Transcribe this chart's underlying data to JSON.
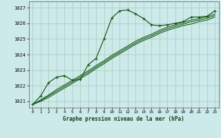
{
  "title": "Graphe pression niveau de la mer (hPa)",
  "bg_color": "#cdeaea",
  "grid_color": "#a8c8b8",
  "line_color": "#1a5c1a",
  "marker_color": "#1a5c1a",
  "xlim": [
    -0.5,
    23.5
  ],
  "ylim": [
    1020.6,
    1027.4
  ],
  "yticks": [
    1021,
    1022,
    1023,
    1024,
    1025,
    1026,
    1027
  ],
  "xticks": [
    0,
    1,
    2,
    3,
    4,
    5,
    6,
    7,
    8,
    9,
    10,
    11,
    12,
    13,
    14,
    15,
    16,
    17,
    18,
    19,
    20,
    21,
    22,
    23
  ],
  "series1_x": [
    0,
    1,
    2,
    3,
    4,
    5,
    6,
    7,
    8,
    9,
    10,
    11,
    12,
    13,
    14,
    15,
    16,
    17,
    18,
    19,
    20,
    21,
    22,
    23
  ],
  "series1_y": [
    1020.8,
    1021.35,
    1022.2,
    1022.55,
    1022.65,
    1022.35,
    1022.4,
    1023.35,
    1023.75,
    1025.0,
    1026.35,
    1026.8,
    1026.85,
    1026.6,
    1026.3,
    1025.9,
    1025.85,
    1025.9,
    1026.0,
    1026.1,
    1026.4,
    1026.4,
    1026.45,
    1026.8
  ],
  "series2_x": [
    0,
    1,
    2,
    3,
    4,
    5,
    6,
    7,
    8,
    9,
    10,
    11,
    12,
    13,
    14,
    15,
    16,
    17,
    18,
    19,
    20,
    21,
    22,
    23
  ],
  "series2_y": [
    1020.8,
    1021.0,
    1021.25,
    1021.55,
    1021.85,
    1022.15,
    1022.45,
    1022.75,
    1023.1,
    1023.4,
    1023.75,
    1024.05,
    1024.35,
    1024.65,
    1024.9,
    1025.1,
    1025.35,
    1025.55,
    1025.7,
    1025.85,
    1025.95,
    1026.1,
    1026.2,
    1026.4
  ],
  "series3_x": [
    0,
    1,
    2,
    3,
    4,
    5,
    6,
    7,
    8,
    9,
    10,
    11,
    12,
    13,
    14,
    15,
    16,
    17,
    18,
    19,
    20,
    21,
    22,
    23
  ],
  "series3_y": [
    1020.8,
    1021.05,
    1021.35,
    1021.65,
    1021.95,
    1022.25,
    1022.55,
    1022.85,
    1023.2,
    1023.5,
    1023.85,
    1024.15,
    1024.45,
    1024.75,
    1025.0,
    1025.2,
    1025.45,
    1025.65,
    1025.8,
    1025.95,
    1026.1,
    1026.2,
    1026.32,
    1026.5
  ],
  "series4_x": [
    0,
    1,
    2,
    3,
    4,
    5,
    6,
    7,
    8,
    9,
    10,
    11,
    12,
    13,
    14,
    15,
    16,
    17,
    18,
    19,
    20,
    21,
    22,
    23
  ],
  "series4_y": [
    1020.8,
    1021.1,
    1021.4,
    1021.75,
    1022.05,
    1022.35,
    1022.65,
    1022.95,
    1023.3,
    1023.6,
    1023.95,
    1024.25,
    1024.55,
    1024.85,
    1025.1,
    1025.3,
    1025.55,
    1025.75,
    1025.9,
    1026.05,
    1026.2,
    1026.3,
    1026.42,
    1026.6
  ]
}
